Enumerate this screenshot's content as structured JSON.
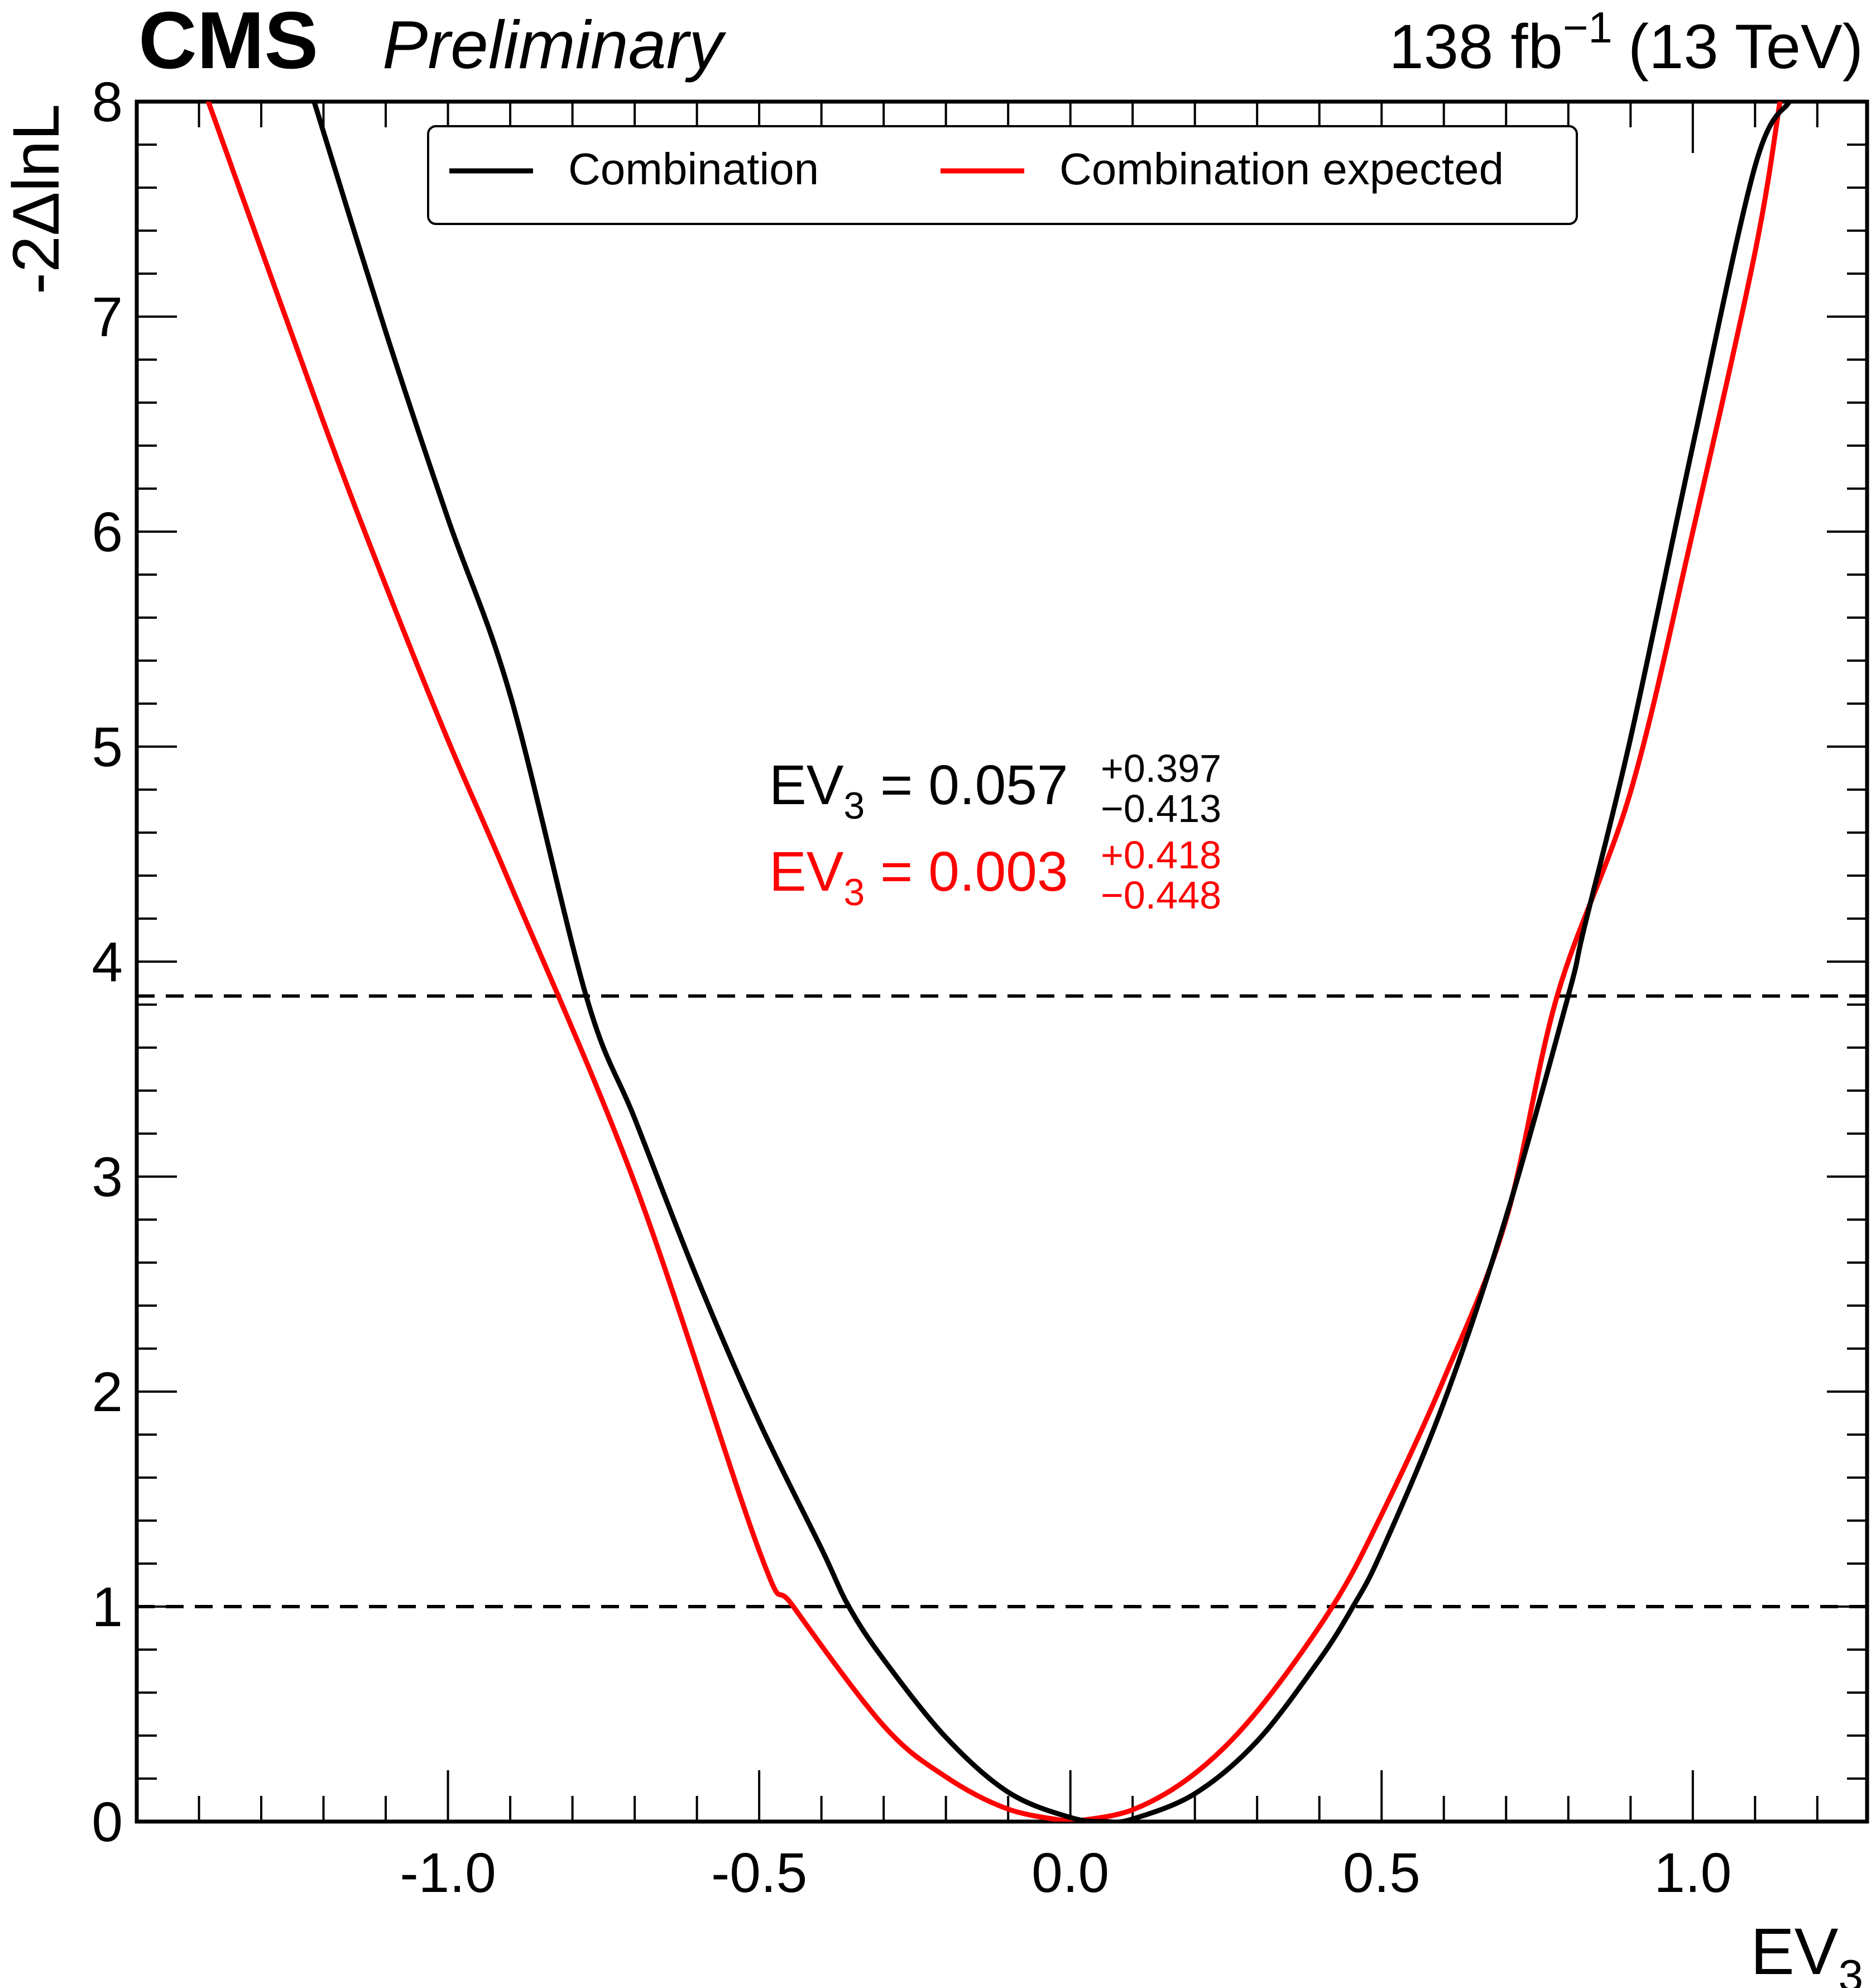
{
  "header": {
    "experiment": "CMS",
    "status": "Preliminary",
    "lumi_main": "138 fb",
    "lumi_exp": "−1",
    "energy": "(13 TeV)"
  },
  "chart_data": {
    "type": "line",
    "xlabel_main": "EV",
    "xlabel_sub": "3",
    "ylabel": "-2ΔlnL",
    "xlim": [
      -1.5,
      1.28
    ],
    "ylim": [
      0,
      8
    ],
    "x_ticks": [
      -1.0,
      -0.5,
      0.0,
      0.5,
      1.0
    ],
    "x_tick_labels": [
      "-1.0",
      "-0.5",
      "0.0",
      "0.5",
      "1.0"
    ],
    "y_ticks": [
      0,
      1,
      2,
      3,
      4,
      5,
      6,
      7,
      8
    ],
    "y_tick_labels": [
      "0",
      "1",
      "2",
      "3",
      "4",
      "5",
      "6",
      "7",
      "8"
    ],
    "grid": false,
    "legend_position": "top-center",
    "series": [
      {
        "name": "Combination",
        "color": "#000000",
        "x": [
          -1.215,
          -1.1,
          -1.0,
          -0.9,
          -0.778,
          -0.7,
          -0.6,
          -0.5,
          -0.4,
          -0.356,
          -0.3,
          -0.2,
          -0.1,
          0.0,
          0.057,
          0.1,
          0.2,
          0.3,
          0.4,
          0.454,
          0.5,
          0.6,
          0.7,
          0.8,
          0.825,
          0.9,
          1.0,
          1.1,
          1.155
        ],
        "y": [
          8.0,
          6.93,
          6.06,
          5.24,
          3.84,
          3.27,
          2.53,
          1.86,
          1.27,
          1.0,
          0.754,
          0.392,
          0.137,
          0.019,
          0.0,
          0.012,
          0.13,
          0.374,
          0.752,
          1.0,
          1.256,
          1.949,
          2.812,
          3.842,
          4.15,
          5.04,
          6.4,
          7.7,
          8.0
        ]
      },
      {
        "name": "Combination expected",
        "color": "#ff0000",
        "x": [
          -1.385,
          -1.2,
          -1.1,
          -1.0,
          -0.9,
          -0.7,
          -0.5,
          -0.445,
          -0.3,
          -0.2,
          -0.1,
          0.0,
          0.003,
          0.1,
          0.2,
          0.3,
          0.421,
          0.5,
          0.6,
          0.7,
          0.782,
          0.9,
          1.0,
          1.1,
          1.14
        ],
        "y": [
          8.0,
          6.51,
          5.75,
          5.03,
          4.36,
          2.97,
          1.26,
          1.0,
          0.446,
          0.208,
          0.058,
          0.0,
          0.0,
          0.055,
          0.224,
          0.513,
          1.0,
          1.428,
          2.058,
          2.8,
          3.84,
          4.79,
          6.0,
          7.3,
          8.0
        ]
      }
    ],
    "reference_lines": [
      1.0,
      3.84
    ],
    "annotations": [
      {
        "label": "EV",
        "sub": "3",
        "eq": " = ",
        "value": "0.057",
        "plus": "+0.397",
        "minus": "−0.413",
        "color": "#000000"
      },
      {
        "label": "EV",
        "sub": "3",
        "eq": " = ",
        "value": "0.003",
        "plus": "+0.418",
        "minus": "−0.448",
        "color": "#ff0000"
      }
    ]
  }
}
